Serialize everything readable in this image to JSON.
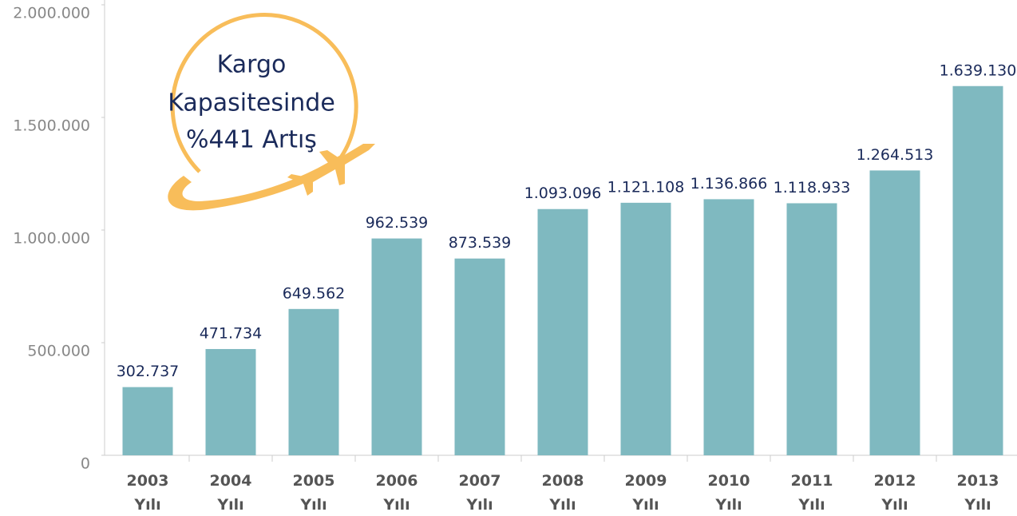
{
  "chart_data": {
    "type": "bar",
    "annotation": [
      "Kargo",
      "Kapasitesinde",
      "%441 Artış"
    ],
    "categories": [
      "2003 Yılı",
      "2004 Yılı",
      "2005 Yılı",
      "2006 Yılı",
      "2007 Yılı",
      "2008 Yılı",
      "2009 Yılı",
      "2010 Yılı",
      "2011 Yılı",
      "2012 Yılı",
      "2013 Yılı"
    ],
    "values": [
      302737,
      471734,
      649562,
      962539,
      873539,
      1093096,
      1121108,
      1136866,
      1118933,
      1264513,
      1639130
    ],
    "value_labels": [
      "302.737",
      "471.734",
      "649.562",
      "962.539",
      "873.539",
      "1.093.096",
      "1.121.108",
      "1.136.866",
      "1.118.933",
      "1.264.513",
      "1.639.130"
    ],
    "color": "#7fb9c0",
    "ylim": [
      0,
      2000000
    ],
    "yticks": [
      0,
      {
        "value": 500000,
        "label": "500.000"
      },
      {
        "value": 1000000,
        "label": "1.000.000"
      },
      {
        "value": 1500000,
        "label": "1.500.000"
      },
      {
        "value": 2000000,
        "label": "2.000.000"
      }
    ]
  }
}
